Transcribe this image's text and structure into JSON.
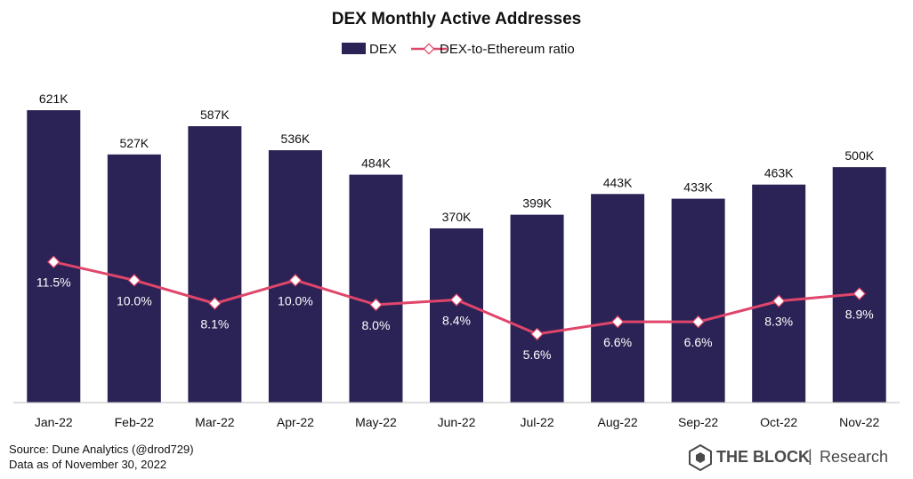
{
  "chart_data": {
    "type": "bar",
    "title": "DEX Monthly Active Addresses",
    "categories": [
      "Jan-22",
      "Feb-22",
      "Mar-22",
      "Apr-22",
      "May-22",
      "Jun-22",
      "Jul-22",
      "Aug-22",
      "Sep-22",
      "Oct-22",
      "Nov-22"
    ],
    "series": [
      {
        "name": "DEX",
        "kind": "bar",
        "color": "#2b2356",
        "values": [
          621,
          527,
          587,
          536,
          484,
          370,
          399,
          443,
          433,
          463,
          500
        ],
        "labels": [
          "621K",
          "527K",
          "587K",
          "536K",
          "484K",
          "370K",
          "399K",
          "443K",
          "433K",
          "463K",
          "500K"
        ]
      },
      {
        "name": "DEX-to-Ethereum ratio",
        "kind": "line",
        "color": "#e0456a",
        "marker_color": "#ffffff",
        "values": [
          11.5,
          10.0,
          8.1,
          10.0,
          8.0,
          8.4,
          5.6,
          6.6,
          6.6,
          8.3,
          8.9
        ],
        "labels": [
          "11.5%",
          "10.0%",
          "8.1%",
          "10.0%",
          "8.0%",
          "8.4%",
          "5.6%",
          "6.6%",
          "6.6%",
          "8.3%",
          "8.9%"
        ]
      }
    ],
    "ylim_bars": [
      0,
      621
    ],
    "ylim_ratio": [
      0,
      23.9
    ],
    "legend": "top-center",
    "grid": false,
    "xlabel": "",
    "ylabel": ""
  },
  "footer": {
    "source": "Source:  Dune Analytics (@drod729)",
    "date": "Data as of November 30, 2022"
  },
  "brand": {
    "name": "THE BLOCK",
    "separator": "|",
    "sub": "Research",
    "icon": "the-block-cube-icon"
  }
}
